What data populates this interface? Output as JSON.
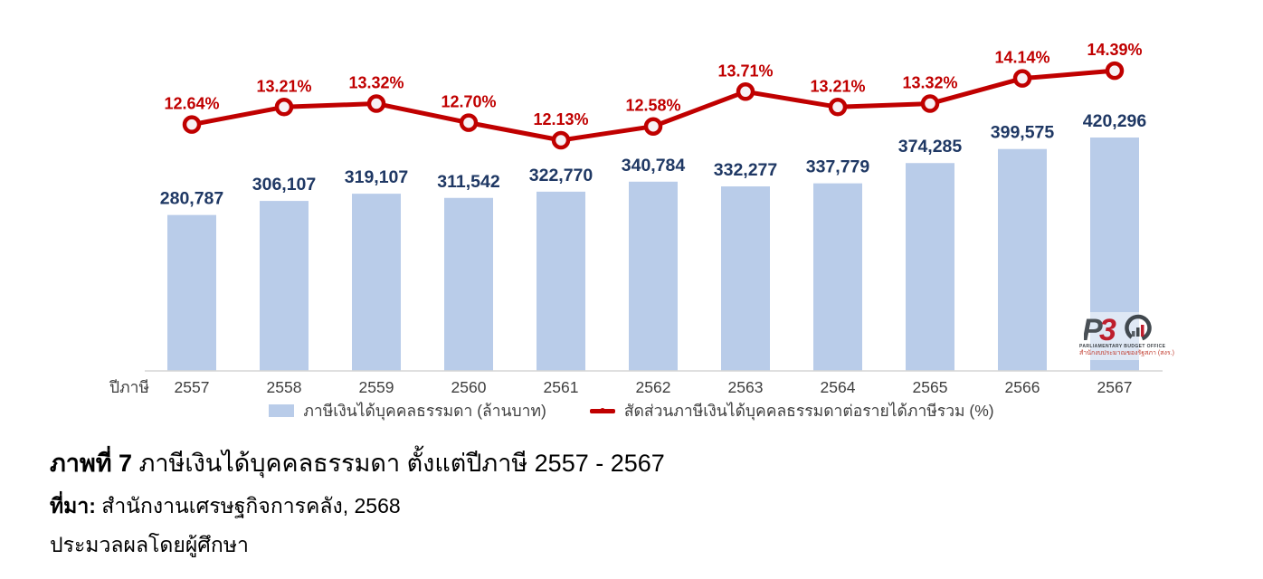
{
  "chart_data": {
    "type": "combo-bar-line",
    "categories": [
      "2557",
      "2558",
      "2559",
      "2560",
      "2561",
      "2562",
      "2563",
      "2564",
      "2565",
      "2566",
      "2567"
    ],
    "x_axis_title": "ปีภาษี",
    "series": [
      {
        "name": "ภาษีเงินได้บุคคลธรรมดา (ล้านบาท)",
        "type": "bar",
        "values": [
          280787,
          306107,
          319107,
          311542,
          322770,
          340784,
          332277,
          337779,
          374285,
          399575,
          420296
        ]
      },
      {
        "name": "สัดส่วนภาษีเงินได้บุคคลธรรมดาต่อรายได้ภาษีรวม (%)",
        "type": "line",
        "values": [
          12.64,
          13.21,
          13.32,
          12.7,
          12.13,
          12.58,
          13.71,
          13.21,
          13.32,
          14.14,
          14.39
        ]
      }
    ],
    "bar_value_labels": [
      "280,787",
      "306,107",
      "319,107",
      "311,542",
      "322,770",
      "340,784",
      "332,277",
      "337,779",
      "374,285",
      "399,575",
      "420,296"
    ],
    "line_value_labels": [
      "12.64%",
      "13.21%",
      "13.32%",
      "12.70%",
      "12.13%",
      "12.58%",
      "13.71%",
      "13.21%",
      "13.32%",
      "14.14%",
      "14.39%"
    ],
    "grid": false,
    "legend_position": "bottom"
  },
  "colors": {
    "bar": "#B9CCE9",
    "bar_label": "#1F3864",
    "line": "#C00000",
    "marker_fill": "#F7F1F5",
    "axis": "#D6D6D6",
    "tick_label": "#3F3F3F"
  },
  "logo": {
    "acronym": "PBO",
    "subtitle_en": "PARLIAMENTARY BUDGET OFFICE",
    "subtitle_th": "สำนักงบประมาณของรัฐสภา (สงร.)"
  },
  "caption": {
    "figure_label": "ภาพที่ 7",
    "figure_title": "ภาษีเงินได้บุคคลธรรมดา ตั้งแต่ปีภาษี 2557 - 2567",
    "source_label": "ที่มา:",
    "source_text": "สำนักงานเศรษฐกิจการคลัง, 2568",
    "note": "ประมวลผลโดยผู้ศึกษา"
  }
}
